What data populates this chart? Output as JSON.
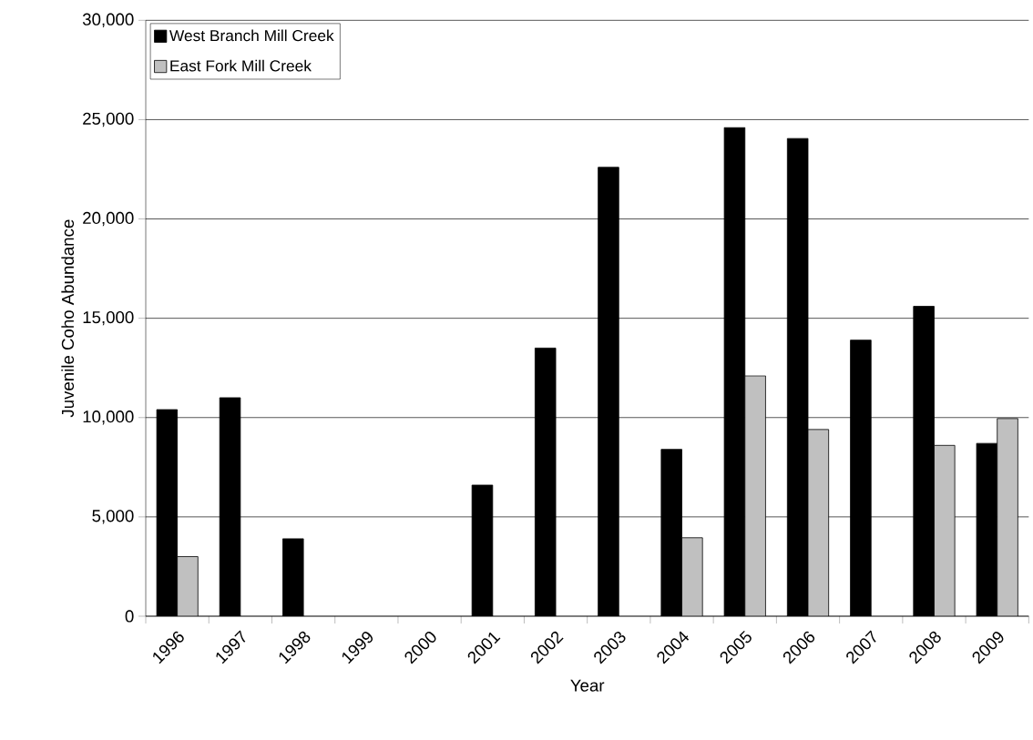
{
  "chart_data": {
    "type": "bar",
    "xlabel": "Year",
    "ylabel": "Juvenile Coho Abundance",
    "categories": [
      "1996",
      "1997",
      "1998",
      "1999",
      "2000",
      "2001",
      "2002",
      "2003",
      "2004",
      "2005",
      "2006",
      "2007",
      "2008",
      "2009"
    ],
    "series": [
      {
        "name": "West Branch Mill Creek",
        "color": "#000000",
        "values": [
          10400,
          11000,
          3900,
          null,
          null,
          6600,
          13500,
          22600,
          8400,
          24600,
          24050,
          13900,
          15600,
          8700
        ]
      },
      {
        "name": "East Fork Mill Creek",
        "color": "#c0c0c0",
        "values": [
          3000,
          null,
          null,
          null,
          null,
          null,
          null,
          null,
          3950,
          12100,
          9400,
          null,
          8600,
          9950
        ]
      }
    ],
    "ylim": [
      0,
      30000
    ],
    "yticks": [
      0,
      {
        "value": 5000,
        "label": "5,000"
      },
      {
        "value": 10000,
        "label": "10,000"
      },
      {
        "value": 15000,
        "label": "15,000"
      },
      {
        "value": 20000,
        "label": "20,000"
      },
      {
        "value": 25000,
        "label": "25,000"
      },
      {
        "value": 30000,
        "label": "30,000"
      }
    ],
    "grid": "y",
    "legend": "top left"
  }
}
